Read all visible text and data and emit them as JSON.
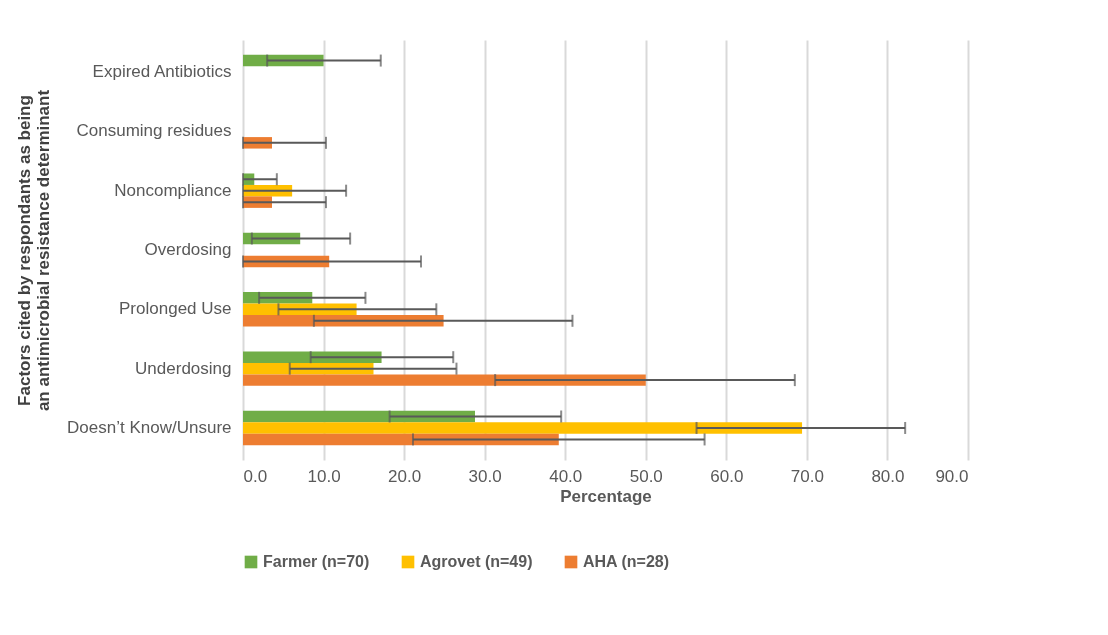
{
  "chart_data": {
    "type": "bar",
    "orientation": "horizontal",
    "xlabel": "Percentage",
    "ylabel": "Factors cited by respondants as being an antimicrobial resistance determinant",
    "categories": [
      "Expired Antibiotics",
      "Consuming residues",
      "Noncompliance",
      "Overdosing",
      "Prolonged Use",
      "Underdosing",
      "Doesn’t Know/Unsure"
    ],
    "series": [
      {
        "name": "Farmer (n=70)",
        "color": "#70ad47",
        "values": [
          10.0,
          null,
          1.4,
          7.1,
          8.6,
          17.2,
          28.8
        ],
        "errors": [
          [
            3.0,
            17.1
          ],
          null,
          [
            0,
            4.2
          ],
          [
            1.1,
            13.3
          ],
          [
            2.0,
            15.2
          ],
          [
            8.4,
            26.1
          ],
          [
            18.2,
            39.5
          ]
        ]
      },
      {
        "name": "Agrovet (n=49)",
        "color": "#ffc000",
        "values": [
          null,
          null,
          6.1,
          null,
          14.1,
          16.2,
          69.4
        ],
        "errors": [
          null,
          null,
          [
            0,
            12.8
          ],
          null,
          [
            4.4,
            24.0
          ],
          [
            5.8,
            26.5
          ],
          [
            56.3,
            82.2
          ]
        ]
      },
      {
        "name": "AHA (n=28)",
        "color": "#ed7d31",
        "values": [
          null,
          3.6,
          3.6,
          10.7,
          24.9,
          50.0,
          39.2
        ],
        "errors": [
          null,
          [
            0,
            10.3
          ],
          [
            0,
            10.3
          ],
          [
            0,
            22.1
          ],
          [
            8.8,
            40.9
          ],
          [
            31.3,
            68.5
          ],
          [
            21.1,
            57.3
          ]
        ]
      }
    ],
    "xlim": [
      0,
      90
    ],
    "xticks": [
      {
        "value": 0,
        "label": "0.0"
      },
      {
        "value": 10,
        "label": "10.0"
      },
      {
        "value": 20,
        "label": "20.0"
      },
      {
        "value": 30,
        "label": "30.0"
      },
      {
        "value": 40,
        "label": "40.0"
      },
      {
        "value": 50,
        "label": "50.0"
      },
      {
        "value": 60,
        "label": "60.0"
      },
      {
        "value": 70,
        "label": "70.0"
      },
      {
        "value": 80,
        "label": "80.0"
      },
      {
        "value": 90,
        "label": "90.0"
      }
    ],
    "grid": "x",
    "legend": "bottom"
  }
}
